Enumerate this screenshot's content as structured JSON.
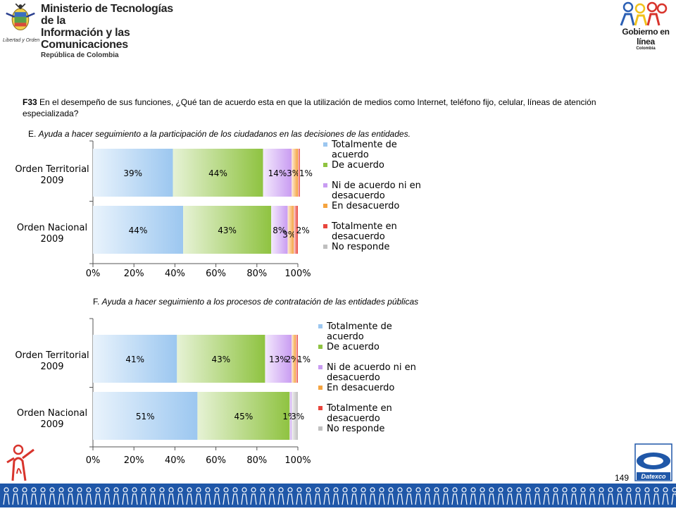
{
  "header": {
    "ministry_line1": "Ministerio de Tecnologías de la",
    "ministry_line2": "Información y las Comunicaciones",
    "ministry_line3": "República de Colombia",
    "seal_caption": "Libertad y Orden",
    "right_logo_line1": "Gobierno en línea",
    "right_logo_line2": "Colombia"
  },
  "question": {
    "code": "F33",
    "text": " En el desempeño de sus funciones,  ¿Qué  tan de acuerdo esta en que la utilización de medios como Internet, teléfono fijo, celular, líneas de atención especializada?"
  },
  "section_e": {
    "prefix": "E. ",
    "text": "Ayuda a hacer seguimiento  a la participación de los ciudadanos en las decisiones de las entidades."
  },
  "section_f": {
    "prefix": "F. ",
    "text": "Ayuda a hacer seguimiento  a los procesos de contratación de las entidades públicas"
  },
  "footer": {
    "page_number": "149",
    "brand": "Datexco"
  },
  "colors": {
    "totalmente_de_acuerdo": "#9cc7f0",
    "de_acuerdo": "#8fc341",
    "ni_de_acuerdo": "#c99cf2",
    "en_desacuerdo": "#f5a440",
    "totalmente_en_desacuerdo": "#e8453c",
    "no_responde": "#bfbfbf",
    "footer_band": "#1f57a8"
  },
  "chart_data": [
    {
      "type": "bar",
      "orientation": "horizontal",
      "stacked": true,
      "title": "",
      "categories": [
        "Orden Territorial 2009",
        "Orden Nacional 2009"
      ],
      "category_lines": [
        [
          "Orden Territorial",
          "2009"
        ],
        [
          "Orden Nacional",
          "2009"
        ]
      ],
      "series": [
        {
          "name": "Totalmente  de acuerdo",
          "legend_lines": [
            "Totalmente  de",
            "acuerdo"
          ],
          "values": [
            39,
            44
          ],
          "labels": [
            "39%",
            "44%"
          ]
        },
        {
          "name": "De acuerdo",
          "legend_lines": [
            "De acuerdo"
          ],
          "values": [
            44,
            43
          ],
          "labels": [
            "44%",
            "43%"
          ]
        },
        {
          "name": "Ni de acuerdo  ni en desacuerdo",
          "legend_lines": [
            "Ni de acuerdo  ni en",
            "desacuerdo"
          ],
          "values": [
            14,
            8
          ],
          "labels": [
            "14%",
            "8%"
          ]
        },
        {
          "name": "En desacuerdo",
          "legend_lines": [
            " En desacuerdo"
          ],
          "values": [
            3,
            3
          ],
          "labels": [
            "3%",
            "3%"
          ]
        },
        {
          "name": "Totalmente en desacuerdo",
          "legend_lines": [
            "Totalmente en",
            "desacuerdo"
          ],
          "values": [
            1,
            2
          ],
          "labels": [
            "1%",
            "2%"
          ]
        },
        {
          "name": "No responde",
          "legend_lines": [
            "No responde"
          ],
          "values": [
            0,
            0
          ],
          "labels": [
            "",
            ""
          ]
        }
      ],
      "xlim": [
        0,
        100
      ],
      "xticks": [
        "0%",
        "20%",
        "40%",
        "60%",
        "80%",
        "100%"
      ],
      "legend": "right"
    },
    {
      "type": "bar",
      "orientation": "horizontal",
      "stacked": true,
      "title": "",
      "categories": [
        "Orden Territorial 2009",
        "Orden Nacional 2009"
      ],
      "category_lines": [
        [
          "Orden Territorial",
          "2009"
        ],
        [
          "Orden Nacional",
          "2009"
        ]
      ],
      "series": [
        {
          "name": "Totalmente  de acuerdo",
          "legend_lines": [
            "Totalmente  de",
            "acuerdo"
          ],
          "values": [
            41,
            51
          ],
          "labels": [
            "41%",
            "51%"
          ]
        },
        {
          "name": "De acuerdo",
          "legend_lines": [
            "De acuerdo"
          ],
          "values": [
            43,
            45
          ],
          "labels": [
            "43%",
            "45%"
          ]
        },
        {
          "name": "Ni de acuerdo  ni en desacuerdo",
          "legend_lines": [
            "Ni de acuerdo  ni en",
            "desacuerdo"
          ],
          "values": [
            13,
            1
          ],
          "labels": [
            "13%",
            "1%"
          ]
        },
        {
          "name": "En desacuerdo",
          "legend_lines": [
            " En desacuerdo"
          ],
          "values": [
            2,
            0
          ],
          "labels": [
            "2%",
            ""
          ]
        },
        {
          "name": "Totalmente en desacuerdo",
          "legend_lines": [
            "Totalmente en",
            "desacuerdo"
          ],
          "values": [
            1,
            0
          ],
          "labels": [
            "1%",
            ""
          ]
        },
        {
          "name": "No responde",
          "legend_lines": [
            "No responde"
          ],
          "values": [
            0,
            3
          ],
          "labels": [
            "",
            "3%"
          ]
        }
      ],
      "xlim": [
        0,
        100
      ],
      "xticks": [
        "0%",
        "20%",
        "40%",
        "60%",
        "80%",
        "100%"
      ],
      "legend": "right"
    }
  ]
}
